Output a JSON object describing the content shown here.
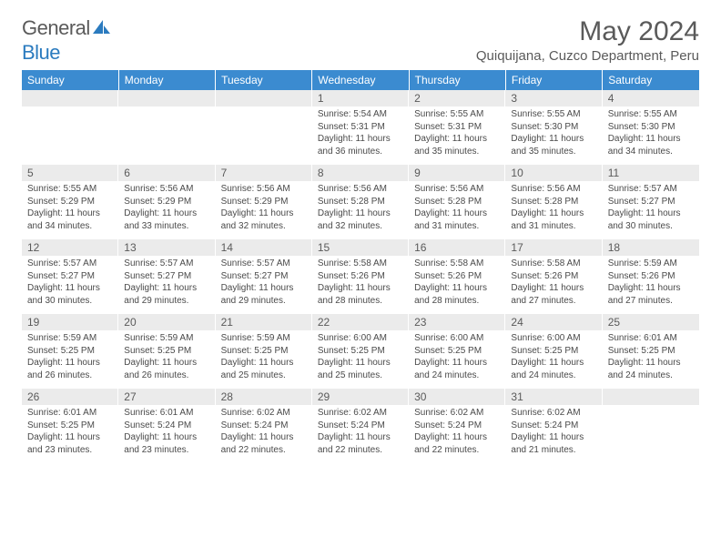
{
  "logo": {
    "text1": "General",
    "text2": "Blue"
  },
  "title": "May 2024",
  "location": "Quiquijana, Cuzco Department, Peru",
  "colors": {
    "header_bg": "#3b8bd0",
    "header_fg": "#ffffff",
    "daynum_bg": "#ebebeb",
    "body_text": "#4a4a4a",
    "title_text": "#5a5a5a",
    "logo_blue": "#2b7bbf"
  },
  "typography": {
    "title_fontsize": 30,
    "location_fontsize": 15,
    "weekday_fontsize": 12,
    "daynum_fontsize": 12,
    "cell_fontsize": 10
  },
  "weekdays": [
    "Sunday",
    "Monday",
    "Tuesday",
    "Wednesday",
    "Thursday",
    "Friday",
    "Saturday"
  ],
  "weeks": [
    [
      {
        "n": "",
        "lines": []
      },
      {
        "n": "",
        "lines": []
      },
      {
        "n": "",
        "lines": []
      },
      {
        "n": "1",
        "lines": [
          "Sunrise: 5:54 AM",
          "Sunset: 5:31 PM",
          "Daylight: 11 hours",
          "and 36 minutes."
        ]
      },
      {
        "n": "2",
        "lines": [
          "Sunrise: 5:55 AM",
          "Sunset: 5:31 PM",
          "Daylight: 11 hours",
          "and 35 minutes."
        ]
      },
      {
        "n": "3",
        "lines": [
          "Sunrise: 5:55 AM",
          "Sunset: 5:30 PM",
          "Daylight: 11 hours",
          "and 35 minutes."
        ]
      },
      {
        "n": "4",
        "lines": [
          "Sunrise: 5:55 AM",
          "Sunset: 5:30 PM",
          "Daylight: 11 hours",
          "and 34 minutes."
        ]
      }
    ],
    [
      {
        "n": "5",
        "lines": [
          "Sunrise: 5:55 AM",
          "Sunset: 5:29 PM",
          "Daylight: 11 hours",
          "and 34 minutes."
        ]
      },
      {
        "n": "6",
        "lines": [
          "Sunrise: 5:56 AM",
          "Sunset: 5:29 PM",
          "Daylight: 11 hours",
          "and 33 minutes."
        ]
      },
      {
        "n": "7",
        "lines": [
          "Sunrise: 5:56 AM",
          "Sunset: 5:29 PM",
          "Daylight: 11 hours",
          "and 32 minutes."
        ]
      },
      {
        "n": "8",
        "lines": [
          "Sunrise: 5:56 AM",
          "Sunset: 5:28 PM",
          "Daylight: 11 hours",
          "and 32 minutes."
        ]
      },
      {
        "n": "9",
        "lines": [
          "Sunrise: 5:56 AM",
          "Sunset: 5:28 PM",
          "Daylight: 11 hours",
          "and 31 minutes."
        ]
      },
      {
        "n": "10",
        "lines": [
          "Sunrise: 5:56 AM",
          "Sunset: 5:28 PM",
          "Daylight: 11 hours",
          "and 31 minutes."
        ]
      },
      {
        "n": "11",
        "lines": [
          "Sunrise: 5:57 AM",
          "Sunset: 5:27 PM",
          "Daylight: 11 hours",
          "and 30 minutes."
        ]
      }
    ],
    [
      {
        "n": "12",
        "lines": [
          "Sunrise: 5:57 AM",
          "Sunset: 5:27 PM",
          "Daylight: 11 hours",
          "and 30 minutes."
        ]
      },
      {
        "n": "13",
        "lines": [
          "Sunrise: 5:57 AM",
          "Sunset: 5:27 PM",
          "Daylight: 11 hours",
          "and 29 minutes."
        ]
      },
      {
        "n": "14",
        "lines": [
          "Sunrise: 5:57 AM",
          "Sunset: 5:27 PM",
          "Daylight: 11 hours",
          "and 29 minutes."
        ]
      },
      {
        "n": "15",
        "lines": [
          "Sunrise: 5:58 AM",
          "Sunset: 5:26 PM",
          "Daylight: 11 hours",
          "and 28 minutes."
        ]
      },
      {
        "n": "16",
        "lines": [
          "Sunrise: 5:58 AM",
          "Sunset: 5:26 PM",
          "Daylight: 11 hours",
          "and 28 minutes."
        ]
      },
      {
        "n": "17",
        "lines": [
          "Sunrise: 5:58 AM",
          "Sunset: 5:26 PM",
          "Daylight: 11 hours",
          "and 27 minutes."
        ]
      },
      {
        "n": "18",
        "lines": [
          "Sunrise: 5:59 AM",
          "Sunset: 5:26 PM",
          "Daylight: 11 hours",
          "and 27 minutes."
        ]
      }
    ],
    [
      {
        "n": "19",
        "lines": [
          "Sunrise: 5:59 AM",
          "Sunset: 5:25 PM",
          "Daylight: 11 hours",
          "and 26 minutes."
        ]
      },
      {
        "n": "20",
        "lines": [
          "Sunrise: 5:59 AM",
          "Sunset: 5:25 PM",
          "Daylight: 11 hours",
          "and 26 minutes."
        ]
      },
      {
        "n": "21",
        "lines": [
          "Sunrise: 5:59 AM",
          "Sunset: 5:25 PM",
          "Daylight: 11 hours",
          "and 25 minutes."
        ]
      },
      {
        "n": "22",
        "lines": [
          "Sunrise: 6:00 AM",
          "Sunset: 5:25 PM",
          "Daylight: 11 hours",
          "and 25 minutes."
        ]
      },
      {
        "n": "23",
        "lines": [
          "Sunrise: 6:00 AM",
          "Sunset: 5:25 PM",
          "Daylight: 11 hours",
          "and 24 minutes."
        ]
      },
      {
        "n": "24",
        "lines": [
          "Sunrise: 6:00 AM",
          "Sunset: 5:25 PM",
          "Daylight: 11 hours",
          "and 24 minutes."
        ]
      },
      {
        "n": "25",
        "lines": [
          "Sunrise: 6:01 AM",
          "Sunset: 5:25 PM",
          "Daylight: 11 hours",
          "and 24 minutes."
        ]
      }
    ],
    [
      {
        "n": "26",
        "lines": [
          "Sunrise: 6:01 AM",
          "Sunset: 5:25 PM",
          "Daylight: 11 hours",
          "and 23 minutes."
        ]
      },
      {
        "n": "27",
        "lines": [
          "Sunrise: 6:01 AM",
          "Sunset: 5:24 PM",
          "Daylight: 11 hours",
          "and 23 minutes."
        ]
      },
      {
        "n": "28",
        "lines": [
          "Sunrise: 6:02 AM",
          "Sunset: 5:24 PM",
          "Daylight: 11 hours",
          "and 22 minutes."
        ]
      },
      {
        "n": "29",
        "lines": [
          "Sunrise: 6:02 AM",
          "Sunset: 5:24 PM",
          "Daylight: 11 hours",
          "and 22 minutes."
        ]
      },
      {
        "n": "30",
        "lines": [
          "Sunrise: 6:02 AM",
          "Sunset: 5:24 PM",
          "Daylight: 11 hours",
          "and 22 minutes."
        ]
      },
      {
        "n": "31",
        "lines": [
          "Sunrise: 6:02 AM",
          "Sunset: 5:24 PM",
          "Daylight: 11 hours",
          "and 21 minutes."
        ]
      },
      {
        "n": "",
        "lines": []
      }
    ]
  ]
}
